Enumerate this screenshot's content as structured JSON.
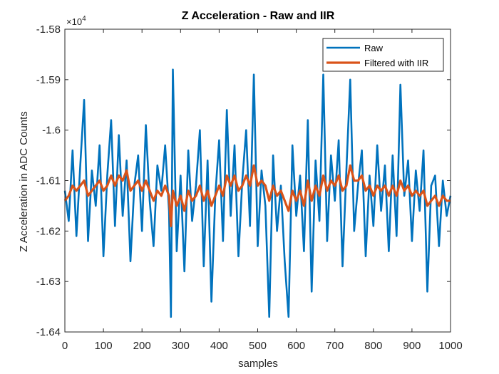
{
  "chart_data": {
    "type": "line",
    "title": "Z Acceleration - Raw and IIR",
    "xlabel": "samples",
    "ylabel": "Z Acceleration in ADC Counts",
    "exponent_label": "×10",
    "exponent_power": "4",
    "xlim": [
      0,
      1000
    ],
    "ylim": [
      -1.64,
      -1.58
    ],
    "xticks": [
      0,
      100,
      200,
      300,
      400,
      500,
      600,
      700,
      800,
      900,
      1000
    ],
    "xtick_labels": [
      "0",
      "100",
      "200",
      "300",
      "400",
      "500",
      "600",
      "700",
      "800",
      "900",
      "1000"
    ],
    "yticks": [
      -1.64,
      -1.63,
      -1.62,
      -1.61,
      -1.6,
      -1.59,
      -1.58
    ],
    "ytick_labels": [
      "-1.64",
      "-1.63",
      "-1.62",
      "-1.61",
      "-1.6",
      "-1.59",
      "-1.58"
    ],
    "grid": false,
    "legend_position": "top-right",
    "series": [
      {
        "name": "Raw",
        "color": "#0072BD",
        "x": [
          0,
          10,
          20,
          30,
          40,
          50,
          60,
          70,
          80,
          90,
          100,
          110,
          120,
          130,
          140,
          150,
          160,
          170,
          180,
          190,
          200,
          210,
          220,
          230,
          240,
          250,
          260,
          270,
          275,
          280,
          290,
          300,
          310,
          320,
          330,
          340,
          350,
          360,
          370,
          380,
          390,
          400,
          410,
          420,
          430,
          440,
          450,
          460,
          470,
          480,
          490,
          500,
          510,
          520,
          530,
          540,
          550,
          560,
          570,
          580,
          590,
          600,
          610,
          620,
          630,
          640,
          650,
          660,
          670,
          680,
          690,
          700,
          710,
          720,
          730,
          740,
          750,
          760,
          770,
          780,
          790,
          800,
          810,
          820,
          830,
          840,
          850,
          860,
          870,
          880,
          890,
          900,
          910,
          920,
          930,
          940,
          950,
          960,
          970,
          980,
          990,
          1000
        ],
        "y": [
          -1.612,
          -1.618,
          -1.604,
          -1.621,
          -1.607,
          -1.594,
          -1.622,
          -1.608,
          -1.615,
          -1.603,
          -1.625,
          -1.609,
          -1.598,
          -1.619,
          -1.601,
          -1.617,
          -1.606,
          -1.626,
          -1.611,
          -1.605,
          -1.62,
          -1.599,
          -1.614,
          -1.623,
          -1.607,
          -1.612,
          -1.603,
          -1.616,
          -1.637,
          -1.588,
          -1.624,
          -1.609,
          -1.628,
          -1.604,
          -1.618,
          -1.611,
          -1.6,
          -1.627,
          -1.606,
          -1.634,
          -1.613,
          -1.602,
          -1.622,
          -1.596,
          -1.617,
          -1.603,
          -1.625,
          -1.61,
          -1.6,
          -1.619,
          -1.589,
          -1.623,
          -1.608,
          -1.615,
          -1.637,
          -1.605,
          -1.62,
          -1.611,
          -1.626,
          -1.637,
          -1.603,
          -1.617,
          -1.609,
          -1.624,
          -1.598,
          -1.632,
          -1.606,
          -1.618,
          -1.589,
          -1.622,
          -1.605,
          -1.614,
          -1.602,
          -1.627,
          -1.608,
          -1.59,
          -1.62,
          -1.611,
          -1.604,
          -1.625,
          -1.609,
          -1.619,
          -1.603,
          -1.616,
          -1.607,
          -1.624,
          -1.605,
          -1.621,
          -1.591,
          -1.613,
          -1.606,
          -1.622,
          -1.608,
          -1.616,
          -1.604,
          -1.632,
          -1.611,
          -1.609,
          -1.623,
          -1.61,
          -1.617,
          -1.613
        ]
      },
      {
        "name": "Filtered with IIR",
        "color": "#D95319",
        "x": [
          0,
          10,
          20,
          30,
          40,
          50,
          60,
          70,
          80,
          90,
          100,
          110,
          120,
          130,
          140,
          150,
          160,
          170,
          180,
          190,
          200,
          210,
          220,
          230,
          240,
          250,
          260,
          270,
          275,
          280,
          290,
          300,
          310,
          320,
          330,
          340,
          350,
          360,
          370,
          380,
          390,
          400,
          410,
          420,
          430,
          440,
          450,
          460,
          470,
          480,
          490,
          500,
          510,
          520,
          530,
          540,
          550,
          560,
          570,
          580,
          590,
          600,
          610,
          620,
          630,
          640,
          650,
          660,
          670,
          680,
          690,
          700,
          710,
          720,
          730,
          740,
          750,
          760,
          770,
          780,
          790,
          800,
          810,
          820,
          830,
          840,
          850,
          860,
          870,
          880,
          890,
          900,
          910,
          920,
          930,
          940,
          950,
          960,
          970,
          980,
          990,
          1000
        ],
        "y": [
          -1.614,
          -1.613,
          -1.611,
          -1.612,
          -1.611,
          -1.61,
          -1.613,
          -1.612,
          -1.611,
          -1.61,
          -1.612,
          -1.611,
          -1.609,
          -1.611,
          -1.609,
          -1.61,
          -1.608,
          -1.612,
          -1.611,
          -1.61,
          -1.612,
          -1.61,
          -1.612,
          -1.614,
          -1.612,
          -1.613,
          -1.611,
          -1.613,
          -1.619,
          -1.612,
          -1.615,
          -1.613,
          -1.616,
          -1.612,
          -1.614,
          -1.613,
          -1.611,
          -1.614,
          -1.612,
          -1.615,
          -1.613,
          -1.611,
          -1.613,
          -1.609,
          -1.611,
          -1.609,
          -1.612,
          -1.611,
          -1.609,
          -1.611,
          -1.607,
          -1.611,
          -1.61,
          -1.611,
          -1.614,
          -1.611,
          -1.613,
          -1.612,
          -1.614,
          -1.616,
          -1.612,
          -1.614,
          -1.612,
          -1.615,
          -1.61,
          -1.614,
          -1.611,
          -1.613,
          -1.609,
          -1.612,
          -1.61,
          -1.611,
          -1.609,
          -1.612,
          -1.611,
          -1.607,
          -1.61,
          -1.61,
          -1.609,
          -1.612,
          -1.611,
          -1.613,
          -1.611,
          -1.612,
          -1.611,
          -1.613,
          -1.611,
          -1.613,
          -1.61,
          -1.612,
          -1.611,
          -1.613,
          -1.612,
          -1.613,
          -1.612,
          -1.615,
          -1.614,
          -1.613,
          -1.615,
          -1.613,
          -1.614,
          -1.614
        ]
      }
    ]
  }
}
